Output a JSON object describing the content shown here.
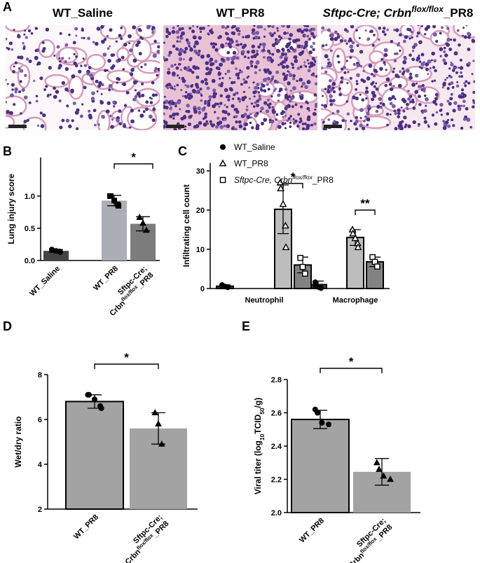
{
  "panel_a": {
    "label": "A",
    "images": [
      {
        "title": "WT_Saline"
      },
      {
        "title": "WT_PR8"
      },
      {
        "title": [
          "Sftpc-Cre; Crbn",
          "flox/flox",
          "_PR8"
        ]
      }
    ]
  },
  "chart_data": [
    {
      "label": "B",
      "type": "bar",
      "ylabel": "Lung injury score",
      "categories": [
        "WT_Saline",
        "WT_PR8",
        [
          "Sftpc-Cre;",
          "Crbn",
          "flox/flox",
          "_PR8"
        ]
      ],
      "values": [
        0.15,
        0.93,
        0.57
      ],
      "errors": [
        0.02,
        0.08,
        0.11
      ],
      "points": [
        [
          0.17,
          0.16,
          0.15,
          0.14,
          0.13
        ],
        [
          1.0,
          1.0,
          0.93,
          0.87,
          0.85
        ],
        [
          0.67,
          0.58,
          0.47
        ]
      ],
      "colors": [
        "#444444",
        "#adadb5",
        "#7c7c7c"
      ],
      "markers": [
        "circle",
        "square",
        "triangle"
      ],
      "ylim": [
        0,
        1.6
      ],
      "yticks": [
        {
          "value": 0,
          "label": "0.0"
        },
        {
          "value": 0.5,
          "label": "0.5"
        },
        {
          "value": 1,
          "label": "1.0"
        }
      ],
      "annotations": [
        "*"
      ]
    },
    {
      "label": "C",
      "type": "grouped_bar",
      "ylabel": "Infiltrating cell count",
      "categories": [
        "Neutrophil",
        "Macrophage"
      ],
      "series": [
        {
          "name": "WT_Saline",
          "color": "#3f3f3f",
          "marker": "circle",
          "values": [
            0.6,
            1.0
          ],
          "errors": [
            0.3,
            0.9
          ],
          "points": [
            [
              0.9,
              0.7,
              0.5,
              0.4,
              0.3
            ],
            [
              1.6,
              0.6,
              0.4,
              0.2,
              0.1
            ]
          ]
        },
        {
          "name": "WT_PR8",
          "color": "#bdbdbd",
          "marker": "triangle-open",
          "values": [
            20.2,
            13.0
          ],
          "errors": [
            6.2,
            2.0
          ],
          "points": [
            [
              27,
              25.5,
              21.5,
              16,
              10.5
            ],
            [
              15,
              14,
              12.8,
              11.5,
              10.5
            ]
          ]
        },
        {
          "name": [
            "Sftpc-Cre, Crbn",
            "flox/flox",
            "_PR8"
          ],
          "color": "#828282",
          "marker": "square-open",
          "values": [
            6.0,
            6.8
          ],
          "errors": [
            2.0,
            1.2
          ],
          "points": [
            [
              7.8,
              5.5,
              3.8
            ],
            [
              8,
              6.8,
              5.6
            ]
          ]
        }
      ],
      "ylim": [
        0,
        32
      ],
      "yticks": [
        0,
        10,
        20,
        30
      ],
      "annotations": [
        "*",
        "**"
      ]
    },
    {
      "label": "D",
      "type": "bar",
      "ylabel": "Wet/dry ratio",
      "categories": [
        "WT_PR8",
        [
          "Sftpc-Cre;",
          "Crbn",
          "flox/flox",
          "_PR8"
        ]
      ],
      "values": [
        6.8,
        5.6
      ],
      "errors": [
        0.3,
        0.7
      ],
      "points": [
        [
          7.1,
          7.1,
          6.9,
          6.6,
          6.5
        ],
        [
          6.3,
          5.8,
          4.9
        ]
      ],
      "colors": [
        "#a3a3a3",
        "#a3a3a3"
      ],
      "markers": [
        "circle",
        "triangle"
      ],
      "ylim": [
        2,
        8
      ],
      "yticks": [
        2,
        4,
        6,
        8
      ],
      "annotations": [
        "*"
      ]
    },
    {
      "label": "E",
      "type": "bar",
      "ylabel": [
        "Viral titer (log",
        "10",
        "TCID",
        "50",
        "/g)"
      ],
      "categories": [
        "WT_PR8",
        [
          "Sftpc-Cre;",
          "Crbn",
          "flox/flox",
          "_PR8"
        ]
      ],
      "values": [
        2.56,
        2.245
      ],
      "errors": [
        0.055,
        0.08
      ],
      "points": [
        [
          2.62,
          2.6,
          2.54,
          2.53
        ],
        [
          2.3,
          2.26,
          2.22,
          2.2
        ]
      ],
      "colors": [
        "#a3a3a3",
        "#a3a3a3"
      ],
      "markers": [
        "circle",
        "triangle"
      ],
      "ylim": [
        2,
        2.8
      ],
      "yticks": [
        {
          "value": 2,
          "label": "2.0"
        },
        {
          "value": 2.2,
          "label": "2.2"
        },
        {
          "value": 2.4,
          "label": "2.4"
        },
        {
          "value": 2.6,
          "label": "2.6"
        },
        {
          "value": 2.8,
          "label": "2.8"
        }
      ],
      "annotations": [
        "*"
      ]
    }
  ]
}
